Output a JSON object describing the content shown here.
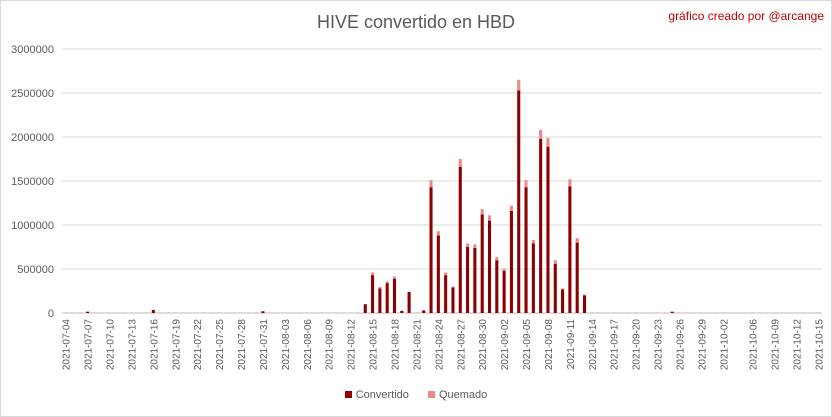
{
  "header": {
    "credit": "gráfico creado por @arcange"
  },
  "colors": {
    "convertido": "#8b0000",
    "quemado": "#e88b8b",
    "grid": "#d9d9d9",
    "axis": "#bfbfbf"
  },
  "chart_data": {
    "type": "bar",
    "stacked": true,
    "title": "HIVE convertido en HBD",
    "xlabel": "",
    "ylabel": "",
    "ylim": [
      0,
      3000000
    ],
    "yticks": [
      0,
      500000,
      1000000,
      1500000,
      2000000,
      2500000,
      3000000
    ],
    "ytick_labels": [
      "0",
      "500000",
      "1000000",
      "1500000",
      "2000000",
      "2500000",
      "3000000"
    ],
    "grid": true,
    "legend_position": "bottom",
    "start_date": "2021-07-04",
    "x_tick_labels": [
      "2021-07-04",
      "2021-07-07",
      "2021-07-10",
      "2021-07-13",
      "2021-07-16",
      "2021-07-19",
      "2021-07-22",
      "2021-07-25",
      "2021-07-28",
      "2021-07-31",
      "2021-08-03",
      "2021-08-06",
      "2021-08-09",
      "2021-08-12",
      "2021-08-15",
      "2021-08-18",
      "2021-08-21",
      "2021-08-24",
      "2021-08-27",
      "2021-08-30",
      "2021-09-02",
      "2021-09-05",
      "2021-09-08",
      "2021-09-11",
      "2021-09-14",
      "2021-09-17",
      "2021-09-20",
      "2021-09-23",
      "2021-09-26",
      "2021-09-29",
      "2021-10-02",
      "2021-10-06",
      "2021-10-09",
      "2021-10-12",
      "2021-10-15"
    ],
    "categories": [
      "2021-07-04",
      "2021-07-05",
      "2021-07-06",
      "2021-07-07",
      "2021-07-08",
      "2021-07-09",
      "2021-07-10",
      "2021-07-11",
      "2021-07-12",
      "2021-07-13",
      "2021-07-14",
      "2021-07-15",
      "2021-07-16",
      "2021-07-17",
      "2021-07-18",
      "2021-07-19",
      "2021-07-20",
      "2021-07-21",
      "2021-07-22",
      "2021-07-23",
      "2021-07-24",
      "2021-07-25",
      "2021-07-26",
      "2021-07-27",
      "2021-07-28",
      "2021-07-29",
      "2021-07-30",
      "2021-07-31",
      "2021-08-01",
      "2021-08-02",
      "2021-08-03",
      "2021-08-04",
      "2021-08-05",
      "2021-08-06",
      "2021-08-07",
      "2021-08-08",
      "2021-08-09",
      "2021-08-10",
      "2021-08-11",
      "2021-08-12",
      "2021-08-13",
      "2021-08-14",
      "2021-08-15",
      "2021-08-16",
      "2021-08-17",
      "2021-08-18",
      "2021-08-19",
      "2021-08-20",
      "2021-08-21",
      "2021-08-22",
      "2021-08-23",
      "2021-08-24",
      "2021-08-25",
      "2021-08-26",
      "2021-08-27",
      "2021-08-28",
      "2021-08-29",
      "2021-08-30",
      "2021-08-31",
      "2021-09-01",
      "2021-09-02",
      "2021-09-03",
      "2021-09-04",
      "2021-09-05",
      "2021-09-06",
      "2021-09-07",
      "2021-09-08",
      "2021-09-09",
      "2021-09-10",
      "2021-09-11",
      "2021-09-12",
      "2021-09-13",
      "2021-09-14",
      "2021-09-15",
      "2021-09-16",
      "2021-09-17",
      "2021-09-18",
      "2021-09-19",
      "2021-09-20",
      "2021-09-21",
      "2021-09-22",
      "2021-09-23",
      "2021-09-24",
      "2021-09-25",
      "2021-09-26",
      "2021-09-27",
      "2021-09-28",
      "2021-09-29",
      "2021-09-30",
      "2021-10-01",
      "2021-10-02",
      "2021-10-03",
      "2021-10-04",
      "2021-10-05",
      "2021-10-06",
      "2021-10-07",
      "2021-10-08",
      "2021-10-09",
      "2021-10-10",
      "2021-10-11",
      "2021-10-12",
      "2021-10-13",
      "2021-10-14",
      "2021-10-15"
    ],
    "series": [
      {
        "name": "Convertido",
        "color": "#8b0000",
        "values": [
          0,
          0,
          0,
          15000,
          0,
          0,
          0,
          0,
          0,
          0,
          0,
          0,
          35000,
          0,
          0,
          0,
          0,
          0,
          0,
          0,
          0,
          0,
          0,
          0,
          0,
          0,
          0,
          20000,
          0,
          0,
          0,
          0,
          0,
          0,
          0,
          0,
          0,
          0,
          0,
          0,
          0,
          100000,
          430000,
          280000,
          340000,
          390000,
          25000,
          240000,
          0,
          30000,
          1430000,
          880000,
          430000,
          290000,
          1660000,
          750000,
          740000,
          1120000,
          1050000,
          600000,
          480000,
          1160000,
          2530000,
          1430000,
          790000,
          1980000,
          1890000,
          560000,
          270000,
          1440000,
          800000,
          200000,
          0,
          0,
          0,
          0,
          0,
          0,
          0,
          0,
          0,
          0,
          0,
          15000,
          0,
          0,
          0,
          0,
          0,
          0,
          0,
          0,
          0,
          0,
          0,
          0,
          0,
          0,
          0,
          0,
          0,
          0,
          0,
          0
        ]
      },
      {
        "name": "Quemado",
        "color": "#e88b8b",
        "values": [
          0,
          0,
          0,
          0,
          0,
          0,
          0,
          0,
          0,
          0,
          0,
          0,
          0,
          0,
          0,
          0,
          0,
          0,
          0,
          0,
          0,
          0,
          0,
          0,
          0,
          0,
          0,
          0,
          0,
          0,
          0,
          0,
          0,
          0,
          0,
          0,
          0,
          0,
          0,
          0,
          0,
          0,
          30000,
          15000,
          20000,
          25000,
          0,
          0,
          0,
          0,
          80000,
          50000,
          30000,
          10000,
          90000,
          40000,
          40000,
          60000,
          60000,
          35000,
          25000,
          60000,
          120000,
          80000,
          40000,
          100000,
          100000,
          40000,
          10000,
          80000,
          50000,
          10000,
          0,
          0,
          0,
          0,
          0,
          0,
          0,
          0,
          0,
          0,
          0,
          0,
          0,
          0,
          0,
          0,
          0,
          0,
          0,
          0,
          0,
          0,
          0,
          0,
          0,
          0,
          0,
          0,
          0,
          0,
          0,
          0
        ]
      }
    ]
  }
}
